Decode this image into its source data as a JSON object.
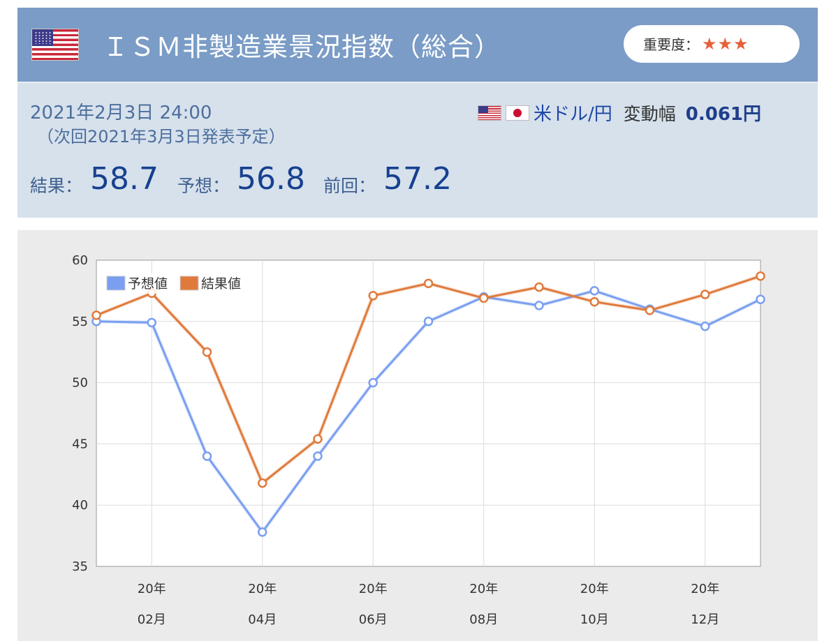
{
  "header": {
    "title": "ＩＳＭ非製造業景況指数（総合）",
    "importance_label": "重要度：",
    "importance_stars": "★★★",
    "importance_rating": 3
  },
  "info": {
    "datetime": "2021年2月3日 24:00",
    "next_release": "（次回2021年3月3日発表予定）",
    "pair": "米ドル/円",
    "volatility_label": "変動幅",
    "volatility_value": "0.061円",
    "result_label": "結果：",
    "result_value": "58.7",
    "forecast_label": "予想：",
    "forecast_value": "56.8",
    "previous_label": "前回：",
    "previous_value": "57.2"
  },
  "colors": {
    "header_bg": "#7a9cc6",
    "info_bg": "#d6e1ec",
    "forecast_line": "#7a9ff0",
    "result_line": "#e07a3c"
  },
  "chart_data": {
    "type": "line",
    "x_periods": [
      "2020-01",
      "2020-02",
      "2020-03",
      "2020-04",
      "2020-05",
      "2020-06",
      "2020-07",
      "2020-08",
      "2020-09",
      "2020-10",
      "2020-11",
      "2020-12",
      "2021-01"
    ],
    "x_tick_labels": [
      {
        "index": 1,
        "top": "20年",
        "bottom": "02月"
      },
      {
        "index": 3,
        "top": "20年",
        "bottom": "04月"
      },
      {
        "index": 5,
        "top": "20年",
        "bottom": "06月"
      },
      {
        "index": 7,
        "top": "20年",
        "bottom": "08月"
      },
      {
        "index": 9,
        "top": "20年",
        "bottom": "10月"
      },
      {
        "index": 11,
        "top": "20年",
        "bottom": "12月"
      }
    ],
    "ylim": [
      35,
      60
    ],
    "y_ticks": [
      35,
      40,
      45,
      50,
      55,
      60
    ],
    "grid": true,
    "legend_position": "top-left",
    "series": [
      {
        "name": "予想値",
        "color": "#7a9ff0",
        "values": [
          55.0,
          54.9,
          44.0,
          37.8,
          44.0,
          50.0,
          55.0,
          57.0,
          56.3,
          57.5,
          56.0,
          54.6,
          56.8
        ]
      },
      {
        "name": "結果値",
        "color": "#e07a3c",
        "values": [
          55.5,
          57.3,
          52.5,
          41.8,
          45.4,
          57.1,
          58.1,
          56.9,
          57.8,
          56.6,
          55.9,
          57.2,
          58.7
        ]
      }
    ]
  }
}
